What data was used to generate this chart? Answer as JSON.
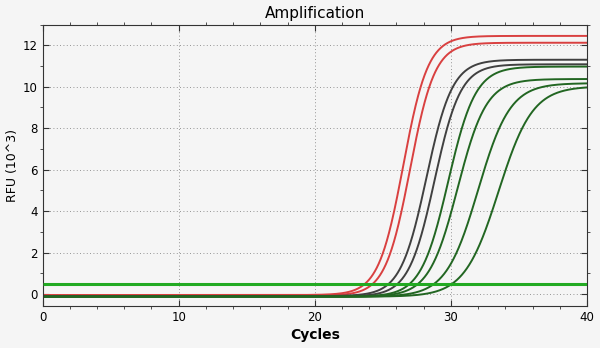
{
  "title": "Amplification",
  "xlabel": "Cycles",
  "ylabel": "RFU (10^3)",
  "xlim": [
    0,
    40
  ],
  "ylim": [
    -0.6,
    13.0
  ],
  "yticks": [
    0,
    2,
    4,
    6,
    8,
    10,
    12
  ],
  "xticks": [
    0,
    10,
    20,
    30,
    40
  ],
  "threshold_y": 0.5,
  "threshold_color": "#22aa22",
  "threshold_lw": 2.2,
  "background_color": "#f5f5f5",
  "plot_bg": "#f5f5f5",
  "grid_color": "#555555",
  "spine_color": "#333333",
  "curves": [
    {
      "color": "#d94040",
      "lw": 1.4,
      "Lmax": 12.5,
      "k": 1.1,
      "x0": 26.5,
      "baseline": -0.05
    },
    {
      "color": "#d94040",
      "lw": 1.4,
      "Lmax": 12.2,
      "k": 1.1,
      "x0": 27.0,
      "baseline": -0.08
    },
    {
      "color": "#404040",
      "lw": 1.4,
      "Lmax": 11.4,
      "k": 1.05,
      "x0": 28.2,
      "baseline": -0.1
    },
    {
      "color": "#404040",
      "lw": 1.4,
      "Lmax": 11.2,
      "k": 1.05,
      "x0": 28.8,
      "baseline": -0.12
    },
    {
      "color": "#226622",
      "lw": 1.4,
      "Lmax": 11.1,
      "k": 1.0,
      "x0": 29.8,
      "baseline": -0.13
    },
    {
      "color": "#226622",
      "lw": 1.4,
      "Lmax": 10.5,
      "k": 0.95,
      "x0": 30.5,
      "baseline": -0.13
    },
    {
      "color": "#226622",
      "lw": 1.4,
      "Lmax": 10.3,
      "k": 0.85,
      "x0": 32.0,
      "baseline": -0.13
    },
    {
      "color": "#226622",
      "lw": 1.4,
      "Lmax": 10.15,
      "k": 0.8,
      "x0": 33.5,
      "baseline": -0.13
    }
  ]
}
